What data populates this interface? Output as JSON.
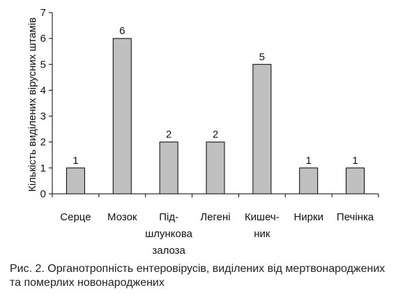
{
  "chart_data": {
    "type": "bar",
    "ylabel": "Кількість виділених вірусних штамів",
    "xlabel": "",
    "ylim": [
      0,
      7
    ],
    "yticks": [
      0,
      1,
      2,
      3,
      4,
      5,
      6,
      7
    ],
    "grid": false,
    "legend": "none",
    "bar_color": "#c0c0c0",
    "bar_stroke": "#000000",
    "categories": [
      [
        "Серце"
      ],
      [
        "Мозок"
      ],
      [
        "Під-",
        "шлункова",
        "залоза"
      ],
      [
        "Легені"
      ],
      [
        "Кишеч-",
        "ник"
      ],
      [
        "Нирки"
      ],
      [
        "Печінка"
      ]
    ],
    "values": [
      1,
      6,
      2,
      2,
      5,
      1,
      1
    ],
    "data_labels": [
      "1",
      "6",
      "2",
      "2",
      "5",
      "1",
      "1"
    ]
  },
  "caption": {
    "line1": "Рис. 2. Органотропність ентеровірусів, виділених від мертвонароджених",
    "line2": "та померлих новонароджених"
  }
}
